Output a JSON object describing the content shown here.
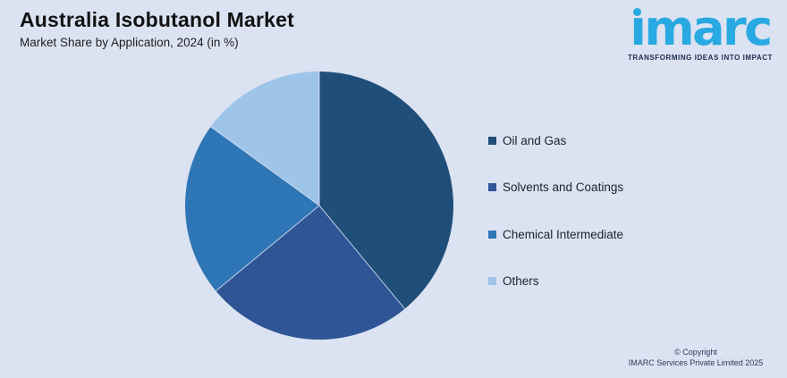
{
  "page": {
    "background": "#dbe2f1"
  },
  "header": {
    "title": "Australia Isobutanol Market",
    "subtitle": "Market Share by Application, 2024 (in %)"
  },
  "logo": {
    "wordmark": "imarc",
    "tagline": "TRANSFORMING IDEAS INTO IMPACT",
    "brand_color": "#29a9e1",
    "tagline_color": "#1c2d50"
  },
  "chart_data": {
    "type": "pie",
    "title": "Australia Isobutanol Market",
    "subtitle": "Market Share by Application, 2024 (in %)",
    "unit": "%",
    "labels": [
      "Oil and Gas",
      "Solvents and Coatings",
      "Chemical Intermediate",
      "Others"
    ],
    "values": [
      39,
      25,
      21,
      15
    ],
    "colors": [
      "#1f4e79",
      "#2f5596",
      "#2e76b6",
      "#9ec4e8"
    ],
    "start_angle_deg": 0,
    "direction": "clockwise",
    "legend_position": "right",
    "data_labels_shown": false
  },
  "footer": {
    "copyright_line1": "© Copyright",
    "copyright_line2": "IMARC Services Private Limited 2025"
  }
}
